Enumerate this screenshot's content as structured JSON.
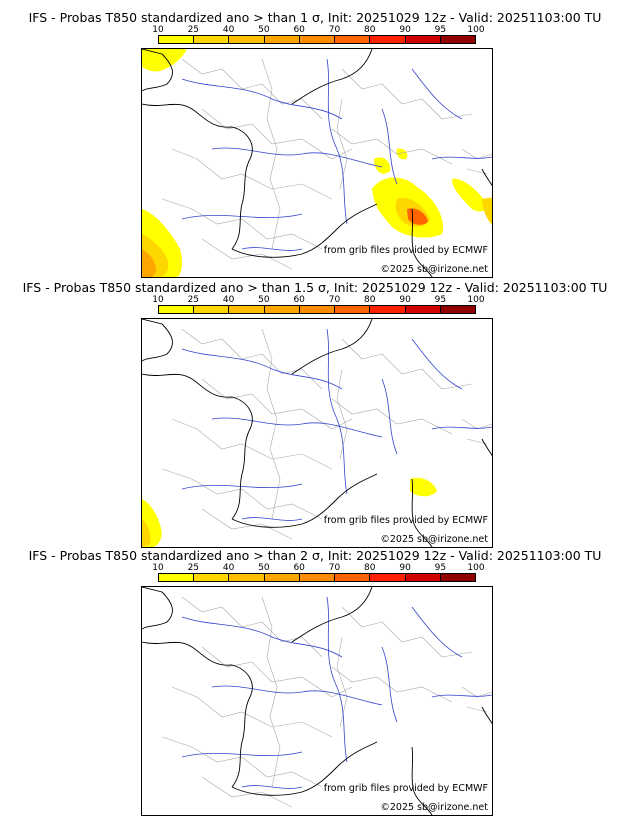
{
  "legend": {
    "labels": [
      "10",
      "25",
      "40",
      "50",
      "60",
      "70",
      "80",
      "90",
      "95",
      "100"
    ],
    "colors": [
      "#ffff00",
      "#ffd700",
      "#ffbf00",
      "#ffa500",
      "#ff8c00",
      "#ff6400",
      "#ff2000",
      "#d00000",
      "#900000",
      "#600000"
    ]
  },
  "panels": [
    {
      "title": "IFS - Probas T850  standardized ano > than 1 σ, Init: 20251029 12z - Valid: 20251103:00 TU",
      "source_note": "from grib files provided by ECMWF",
      "copyright": "©2025 sb@irizone.net"
    },
    {
      "title": "IFS - Probas T850  standardized ano > than 1.5 σ, Init: 20251029 12z - Valid: 20251103:00 TU",
      "source_note": "from grib files provided by ECMWF",
      "copyright": "©2025 sb@irizone.net"
    },
    {
      "title": "IFS - Probas T850  standardized ano > than 2 σ, Init: 20251029 12z - Valid: 20251103:00 TU",
      "source_note": "from grib files provided by ECMWF",
      "copyright": "©2025 sb@irizone.net"
    }
  ]
}
